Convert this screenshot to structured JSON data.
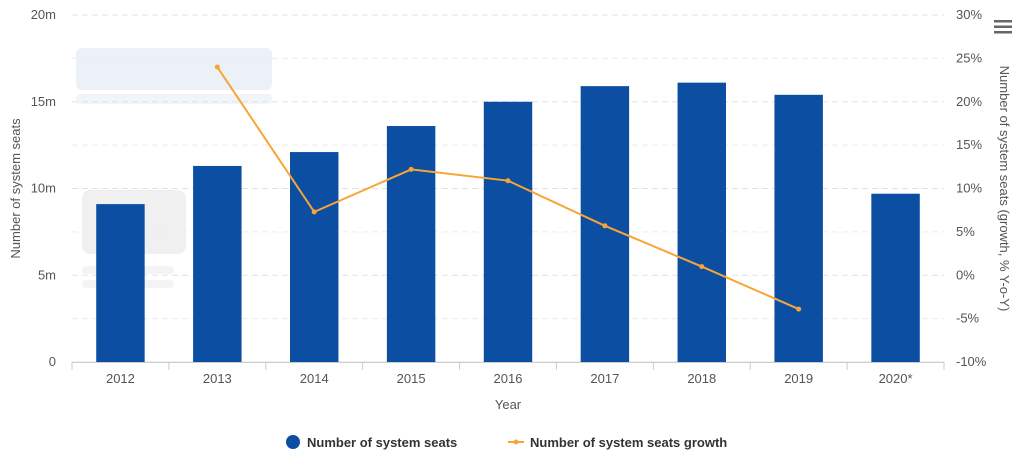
{
  "chart_data": {
    "type": "bar",
    "categories": [
      "2012",
      "2013",
      "2014",
      "2015",
      "2016",
      "2017",
      "2018",
      "2019",
      "2020*"
    ],
    "series": [
      {
        "name": "Number of system seats",
        "kind": "bar",
        "axis": "left",
        "color": "#0b4ea2",
        "values": [
          9.1,
          11.3,
          12.1,
          13.6,
          15.0,
          15.9,
          16.1,
          15.4,
          9.7
        ]
      },
      {
        "name": "Number of system seats growth",
        "kind": "line",
        "axis": "right",
        "color": "#f7a535",
        "values": [
          null,
          24.0,
          7.3,
          12.2,
          10.9,
          5.7,
          1.0,
          -3.9,
          null
        ]
      }
    ],
    "xlabel": "Year",
    "ylabel": "Number of system seats",
    "ylabel_right": "Number of system seats (growth, % Y-o-Y)",
    "ylim": [
      0,
      20
    ],
    "ylim_right": [
      -10,
      30
    ],
    "y_ticks": [
      "0",
      "5m",
      "10m",
      "15m",
      "20m"
    ],
    "y_ticks_right": [
      "-10%",
      "-5%",
      "0%",
      "5%",
      "10%",
      "15%",
      "20%",
      "25%",
      "30%"
    ],
    "grid": true,
    "legend_position": "bottom-center"
  },
  "menu": {
    "icon": "hamburger-menu-icon"
  }
}
